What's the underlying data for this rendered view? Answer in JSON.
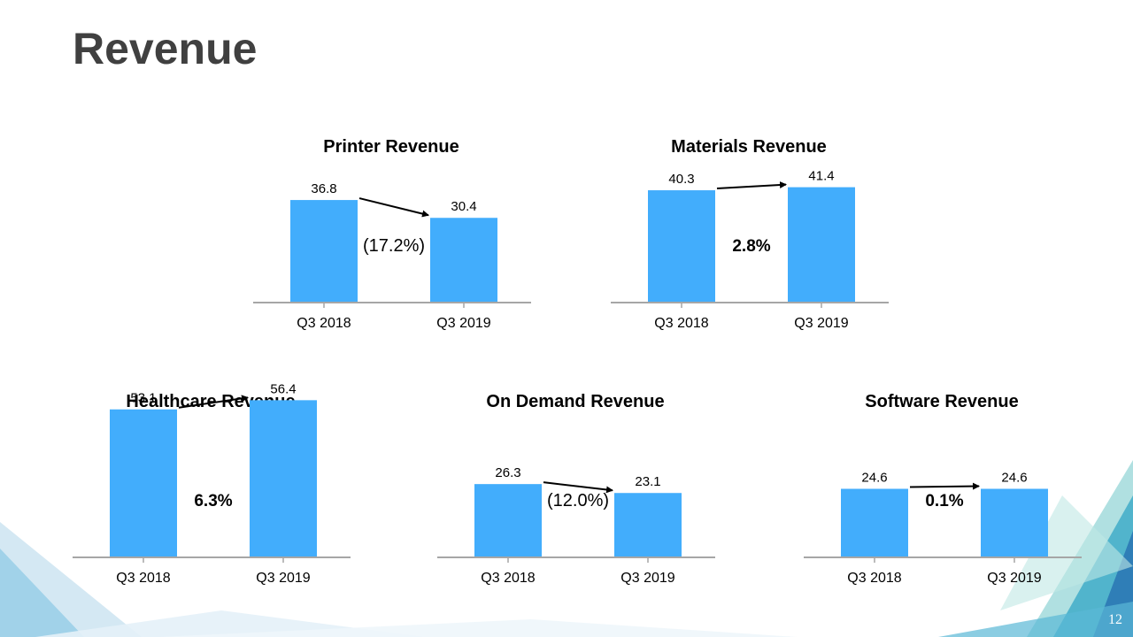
{
  "slide": {
    "title": "Revenue",
    "page_number": "12"
  },
  "colors": {
    "bar": "#42adfc",
    "axis": "#a6a6a6",
    "arrow": "#000000",
    "title": "#404040"
  },
  "chart_data": [
    {
      "type": "bar",
      "title": "Printer Revenue",
      "categories": [
        "Q3 2018",
        "Q3 2019"
      ],
      "values": [
        36.8,
        30.4
      ],
      "value_labels": [
        "36.8",
        "30.4"
      ],
      "change_label": "(17.2%)",
      "change_bold": false,
      "change_direction": "down"
    },
    {
      "type": "bar",
      "title": "Materials Revenue",
      "categories": [
        "Q3 2018",
        "Q3 2019"
      ],
      "values": [
        40.3,
        41.4
      ],
      "value_labels": [
        "40.3",
        "41.4"
      ],
      "change_label": "2.8%",
      "change_bold": true,
      "change_direction": "up"
    },
    {
      "type": "bar",
      "title": "Healthcare Revenue",
      "categories": [
        "Q3 2018",
        "Q3 2019"
      ],
      "values": [
        53.1,
        56.4
      ],
      "value_labels": [
        "53.1",
        "56.4"
      ],
      "change_label": "6.3%",
      "change_bold": true,
      "change_direction": "up"
    },
    {
      "type": "bar",
      "title": "On Demand Revenue",
      "categories": [
        "Q3 2018",
        "Q3 2019"
      ],
      "values": [
        26.3,
        23.1
      ],
      "value_labels": [
        "26.3",
        "23.1"
      ],
      "change_label": "(12.0%)",
      "change_bold": false,
      "change_direction": "down"
    },
    {
      "type": "bar",
      "title": "Software Revenue",
      "categories": [
        "Q3 2018",
        "Q3 2019"
      ],
      "values": [
        24.6,
        24.6
      ],
      "value_labels": [
        "24.6",
        "24.6"
      ],
      "change_label": "0.1%",
      "change_bold": true,
      "change_direction": "up"
    }
  ]
}
